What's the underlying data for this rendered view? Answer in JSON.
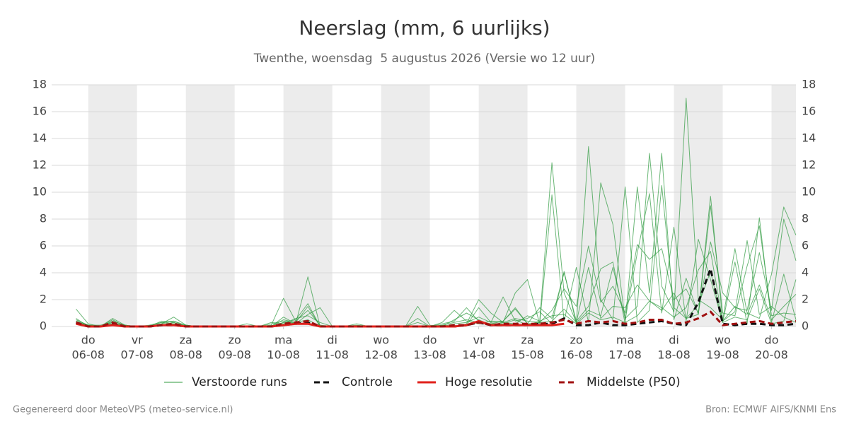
{
  "chart_data": {
    "type": "line",
    "title": "Neerslag (mm, 6 uurlijks)",
    "subtitle": "Twenthe, woensdag  5 augustus 2026 (Versie wo 12 uur)",
    "footer_left": "Gegenereerd door MeteoVPS (meteo-service.nl)",
    "footer_right": "Bron: ECMWF AIFS/KNMI Ens",
    "x": [
      5.75,
      6,
      6.25,
      6.5,
      6.75,
      7,
      7.25,
      7.5,
      7.75,
      8,
      8.25,
      8.5,
      8.75,
      9,
      9.25,
      9.5,
      9.75,
      10,
      10.25,
      10.5,
      10.75,
      11,
      11.25,
      11.5,
      11.75,
      12,
      12.25,
      12.5,
      12.75,
      13,
      13.25,
      13.5,
      13.75,
      14,
      14.25,
      14.5,
      14.75,
      15,
      15.25,
      15.5,
      15.75,
      16,
      16.25,
      16.5,
      16.75,
      17,
      17.25,
      17.5,
      17.75,
      18,
      18.25,
      18.5,
      18.75,
      19,
      19.25,
      19.5,
      19.75,
      20,
      20.25,
      20.5
    ],
    "xlim": [
      5.25,
      20.5
    ],
    "xticks": [
      {
        "value": 6,
        "label": [
          "do",
          "06-08"
        ]
      },
      {
        "value": 7,
        "label": [
          "vr",
          "07-08"
        ]
      },
      {
        "value": 8,
        "label": [
          "za",
          "08-08"
        ]
      },
      {
        "value": 9,
        "label": [
          "zo",
          "09-08"
        ]
      },
      {
        "value": 10,
        "label": [
          "ma",
          "10-08"
        ]
      },
      {
        "value": 11,
        "label": [
          "di",
          "11-08"
        ]
      },
      {
        "value": 12,
        "label": [
          "wo",
          "12-08"
        ]
      },
      {
        "value": 13,
        "label": [
          "do",
          "13-08"
        ]
      },
      {
        "value": 14,
        "label": [
          "vr",
          "14-08"
        ]
      },
      {
        "value": 15,
        "label": [
          "za",
          "15-08"
        ]
      },
      {
        "value": 16,
        "label": [
          "zo",
          "16-08"
        ]
      },
      {
        "value": 17,
        "label": [
          "ma",
          "17-08"
        ]
      },
      {
        "value": 18,
        "label": [
          "di",
          "18-08"
        ]
      },
      {
        "value": 19,
        "label": [
          "wo",
          "19-08"
        ]
      },
      {
        "value": 20,
        "label": [
          "do",
          "20-08"
        ]
      }
    ],
    "ylim": [
      0,
      18
    ],
    "yticks": [
      0,
      2,
      4,
      6,
      8,
      10,
      12,
      14,
      16,
      18
    ],
    "grid": true,
    "shade_alternate_days": true,
    "series": [
      {
        "name": "Verstoorde runs",
        "color": "#2e9a3e",
        "style": "thin",
        "members": [
          [
            1.3,
            0.2,
            0,
            0.6,
            0.1,
            0,
            0,
            0.2,
            0.7,
            0.1,
            0,
            0,
            0,
            0,
            0,
            0,
            0.1,
            2.1,
            0.4,
            1.2,
            0.1,
            0,
            0,
            0,
            0,
            0,
            0,
            0,
            0,
            0,
            0.1,
            0,
            0.2,
            2.0,
            1.0,
            0.3,
            0.2,
            0.8,
            0.4,
            12.2,
            2.5,
            0.3,
            1.2,
            0.8,
            4.4,
            0.6,
            1.5,
            12.9,
            3.0,
            1.1,
            17.0,
            2.0,
            1.4,
            0.5,
            5.8,
            1.0,
            0.6,
            3.9,
            8.9,
            6.8
          ],
          [
            0.4,
            0.1,
            0,
            0.3,
            0,
            0,
            0.1,
            0.3,
            0.4,
            0.1,
            0,
            0,
            0,
            0,
            0,
            0,
            0,
            0.7,
            0.2,
            3.7,
            0,
            0,
            0,
            0.1,
            0,
            0,
            0,
            0,
            1.5,
            0.1,
            0,
            0,
            0.1,
            1.4,
            0.3,
            2.2,
            0.4,
            0.6,
            1.1,
            0.2,
            4.1,
            0.2,
            13.4,
            2.0,
            0.5,
            10.4,
            0.3,
            1.2,
            10.5,
            1.4,
            0.6,
            0.9,
            9.7,
            0.4,
            1.1,
            6.4,
            0.9,
            1.5,
            0.7,
            0.3
          ],
          [
            0.6,
            0,
            0,
            0.5,
            0,
            0,
            0,
            0.4,
            0.3,
            0,
            0,
            0,
            0,
            0,
            0.2,
            0,
            0,
            0.3,
            0.5,
            1.7,
            0,
            0,
            0,
            0,
            0,
            0,
            0,
            0,
            0.3,
            0,
            0.3,
            1.2,
            0.4,
            0.2,
            0.4,
            0.3,
            2.5,
            3.5,
            0.2,
            9.8,
            0.4,
            4.4,
            0.3,
            10.7,
            7.6,
            0.5,
            5.5,
            9.9,
            1.0,
            7.4,
            0.4,
            6.5,
            3.5,
            0.3,
            4.8,
            0.2,
            8.1,
            0.3,
            3.9,
            0.5
          ],
          [
            0.3,
            0.1,
            0,
            0.2,
            0,
            0,
            0,
            0.3,
            0.2,
            0,
            0,
            0,
            0,
            0,
            0,
            0,
            0.2,
            0.4,
            0.2,
            0.9,
            1.4,
            0,
            0,
            0,
            0,
            0,
            0,
            0,
            0.6,
            0,
            0.2,
            0.4,
            1.4,
            0.4,
            0.2,
            0.4,
            1.3,
            0.2,
            1.4,
            0.6,
            4.0,
            0.4,
            1.5,
            4.3,
            4.8,
            0.2,
            10.4,
            2.5,
            12.9,
            0.5,
            3.6,
            0.9,
            9.0,
            1.0,
            0.8,
            4.5,
            7.5,
            0.8,
            1.0,
            0.9
          ],
          [
            0.5,
            0.1,
            0,
            0.4,
            0.1,
            0,
            0,
            0.2,
            0.4,
            0,
            0,
            0,
            0,
            0,
            0,
            0,
            0,
            0.5,
            0.3,
            1.5,
            0,
            0,
            0,
            0.2,
            0,
            0,
            0,
            0,
            0,
            0,
            0,
            0.5,
            1.0,
            0.5,
            0.1,
            0.3,
            0.6,
            0.4,
            0.3,
            1.2,
            2.8,
            1.5,
            6.0,
            1.8,
            3.0,
            1.0,
            6.1,
            5.0,
            5.8,
            2.0,
            2.8,
            1.0,
            6.3,
            2.5,
            1.4,
            1.2,
            5.5,
            1.2,
            8.0,
            4.9
          ],
          [
            0.2,
            0.1,
            0.1,
            0.3,
            0,
            0,
            0,
            0.1,
            0.2,
            0.1,
            0,
            0,
            0,
            0,
            0,
            0,
            0.3,
            0.2,
            0.6,
            0.8,
            0.3,
            0,
            0,
            0,
            0,
            0,
            0,
            0,
            0,
            0,
            0,
            0.2,
            0.3,
            0.7,
            0.3,
            0.4,
            1.4,
            0.2,
            0.3,
            0.4,
            1.3,
            0.3,
            4.4,
            0.6,
            1.5,
            1.4,
            3.1,
            1.9,
            1.4,
            0.7,
            1.4,
            4.2,
            5.6,
            0.4,
            1.5,
            0.9,
            3.1,
            0.5,
            1.5,
            2.4
          ],
          [
            0.4,
            0,
            0,
            0.2,
            0.1,
            0,
            0,
            0.1,
            0.3,
            0,
            0,
            0,
            0,
            0,
            0,
            0,
            0,
            0.3,
            0.3,
            0.5,
            0,
            0,
            0,
            0,
            0,
            0,
            0,
            0,
            0,
            0,
            0.1,
            0.3,
            0.5,
            0.3,
            0.2,
            0.2,
            0.5,
            0.1,
            0.4,
            0.8,
            0.9,
            0.2,
            1.0,
            0.5,
            0.7,
            0.3,
            0.8,
            1.9,
            1.2,
            2.5,
            0.6,
            1.6,
            4.1,
            0.3,
            0.7,
            0.5,
            2.8,
            0.2,
            0.4,
            3.5
          ]
        ]
      },
      {
        "name": "Controle",
        "color": "#111111",
        "style": "dashed",
        "values": [
          0.3,
          0,
          0,
          0.2,
          0,
          0,
          0,
          0.1,
          0.1,
          0,
          0,
          0,
          0,
          0,
          0,
          0,
          0,
          0.1,
          0.2,
          0.3,
          0,
          0,
          0,
          0,
          0,
          0,
          0,
          0,
          0,
          0,
          0,
          0,
          0.1,
          0.3,
          0.1,
          0.1,
          0.1,
          0.1,
          0.2,
          0.2,
          0.6,
          0.1,
          0.1,
          0.3,
          0.1,
          0.1,
          0.2,
          0.3,
          0.4,
          0.2,
          0.1,
          1.8,
          4.3,
          0.2,
          0.1,
          0.2,
          0.2,
          0.1,
          0.1,
          0.2
        ]
      },
      {
        "name": "Hoge resolutie",
        "color": "#e0201b",
        "style": "solid",
        "values": [
          0.2,
          0,
          0,
          0.1,
          0,
          0,
          0,
          0.1,
          0.1,
          0,
          0,
          0,
          0,
          0,
          0,
          0,
          0,
          0.1,
          0.2,
          0.2,
          0,
          0,
          0,
          0,
          0,
          0,
          0,
          0,
          0,
          0,
          0,
          0,
          0.1,
          0.4,
          0.1,
          0.1,
          0.1,
          0.1,
          0.1,
          0.1,
          0.2,
          null,
          null,
          null,
          null,
          null,
          null,
          null,
          null,
          null,
          null,
          null,
          null,
          null,
          null,
          null,
          null,
          null,
          null,
          null
        ]
      },
      {
        "name": "Middelste (P50)",
        "color": "#a01010",
        "style": "dashed",
        "values": [
          0.3,
          0,
          0,
          0.3,
          0,
          0,
          0,
          0.1,
          0.2,
          0,
          0,
          0,
          0,
          0,
          0,
          0,
          0,
          0.2,
          0.3,
          0.4,
          0,
          0,
          0,
          0,
          0,
          0,
          0,
          0,
          0,
          0,
          0,
          0.1,
          0.1,
          0.3,
          0.1,
          0.2,
          0.2,
          0.2,
          0.2,
          0.3,
          0.5,
          0.2,
          0.4,
          0.3,
          0.4,
          0.2,
          0.3,
          0.5,
          0.5,
          0.2,
          0.3,
          0.6,
          1.1,
          0.1,
          0.2,
          0.3,
          0.4,
          0.2,
          0.3,
          0.4
        ]
      }
    ]
  }
}
